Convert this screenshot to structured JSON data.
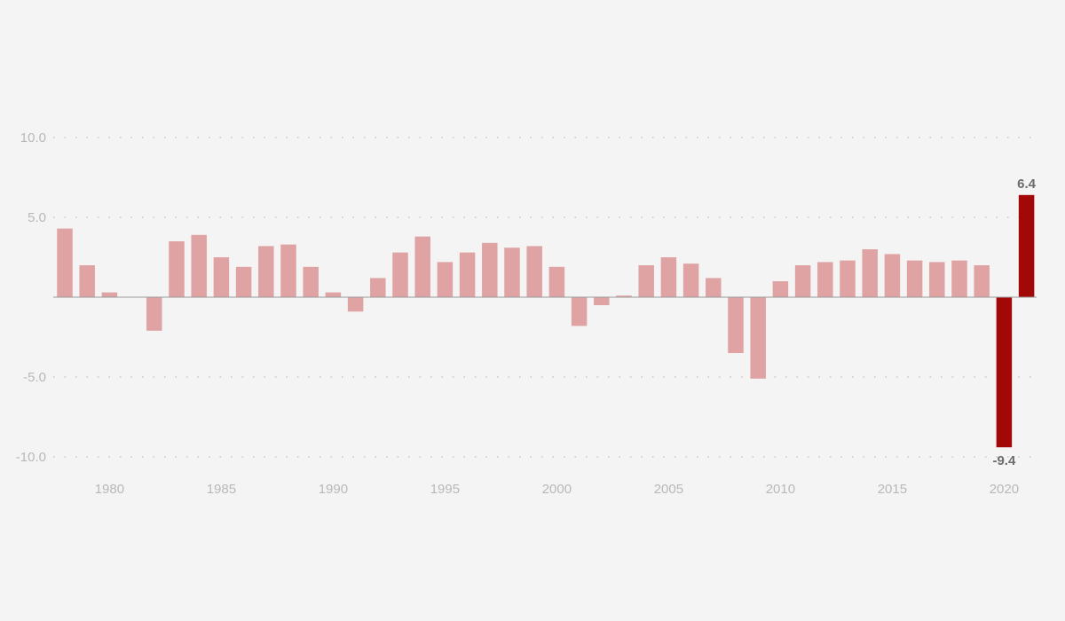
{
  "chart_data": {
    "type": "bar",
    "x": [
      1978,
      1979,
      1980,
      1981,
      1982,
      1983,
      1984,
      1985,
      1986,
      1987,
      1988,
      1989,
      1990,
      1991,
      1992,
      1993,
      1994,
      1995,
      1996,
      1997,
      1998,
      1999,
      2000,
      2001,
      2002,
      2003,
      2004,
      2005,
      2006,
      2007,
      2008,
      2009,
      2010,
      2011,
      2012,
      2013,
      2014,
      2015,
      2016,
      2017,
      2018,
      2019,
      2020,
      2021
    ],
    "values": [
      4.3,
      2.0,
      0.3,
      0.0,
      -2.1,
      3.5,
      3.9,
      2.5,
      1.9,
      3.2,
      3.3,
      1.9,
      0.3,
      -0.9,
      1.2,
      2.8,
      3.8,
      2.2,
      2.8,
      3.4,
      3.1,
      3.2,
      1.9,
      -1.8,
      -0.5,
      0.1,
      2.0,
      2.5,
      2.1,
      1.2,
      -3.5,
      -5.1,
      1.0,
      2.0,
      2.2,
      2.3,
      3.0,
      2.7,
      2.3,
      2.2,
      2.3,
      2.0,
      -9.4,
      6.4
    ],
    "highlight": [
      2020,
      2021
    ],
    "data_labels": [
      {
        "year": 2020,
        "text": "-9.4"
      },
      {
        "year": 2021,
        "text": "6.4"
      }
    ],
    "y_ticks": [
      10,
      5,
      0,
      -5,
      -10
    ],
    "y_tick_labels": [
      "10.0",
      "5.0",
      "",
      "-5.0",
      "-10.0"
    ],
    "x_ticks": [
      1980,
      1985,
      1990,
      1995,
      2000,
      2005,
      2010,
      2015,
      2020
    ],
    "x_tick_labels": [
      "1980",
      "1985",
      "1990",
      "1995",
      "2000",
      "2005",
      "2010",
      "2015",
      "2020"
    ],
    "ylim": [
      -10,
      10
    ],
    "grid": true,
    "colors": {
      "bar": "#e0a3a3",
      "highlight": "#a30808",
      "grid": "#bcbcbc",
      "zero_line": "#9a9a9a"
    }
  }
}
